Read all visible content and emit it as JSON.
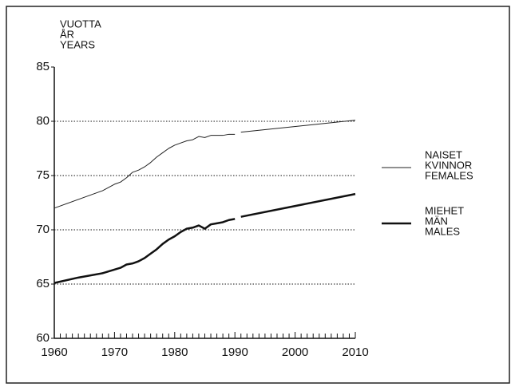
{
  "chart_data": {
    "type": "line",
    "ylabel": [
      "VUOTTA",
      "ÅR",
      "YEARS"
    ],
    "xlim": [
      1960,
      2010
    ],
    "xticks": [
      1960,
      1970,
      1980,
      1990,
      2000,
      2010
    ],
    "ylim": [
      60,
      85
    ],
    "yticks": [
      60,
      65,
      70,
      75,
      80,
      85
    ],
    "grid": true,
    "legend": "right",
    "series": [
      {
        "name": [
          "NAISET",
          "KVINNOR",
          "FEMALES"
        ],
        "color": "#222",
        "width": 1,
        "x": [
          1960,
          1965,
          1968,
          1970,
          1971,
          1972,
          1973,
          1974,
          1975,
          1976,
          1977,
          1978,
          1979,
          1980,
          1981,
          1982,
          1983,
          1984,
          1985,
          1986,
          1987,
          1988,
          1989,
          1990,
          1990.5,
          1991,
          2010
        ],
        "values": [
          72.0,
          73.0,
          73.6,
          74.2,
          74.4,
          74.8,
          75.3,
          75.5,
          75.8,
          76.2,
          76.7,
          77.1,
          77.5,
          77.8,
          78.0,
          78.2,
          78.3,
          78.6,
          78.5,
          78.7,
          78.7,
          78.7,
          78.8,
          78.8,
          null,
          79.0,
          80.1
        ]
      },
      {
        "name": [
          "MIEHET",
          "MÄN",
          "MALES"
        ],
        "color": "#111",
        "width": 2.5,
        "x": [
          1960,
          1964,
          1968,
          1971,
          1972,
          1973,
          1974,
          1975,
          1976,
          1977,
          1978,
          1979,
          1980,
          1981,
          1982,
          1983,
          1984,
          1985,
          1986,
          1987,
          1988,
          1989,
          1990,
          1990.5,
          1991,
          2010
        ],
        "values": [
          65.1,
          65.6,
          66.0,
          66.5,
          66.8,
          66.9,
          67.1,
          67.4,
          67.8,
          68.2,
          68.7,
          69.1,
          69.4,
          69.8,
          70.1,
          70.2,
          70.4,
          70.1,
          70.5,
          70.6,
          70.7,
          70.9,
          71.0,
          null,
          71.2,
          73.3
        ]
      }
    ]
  }
}
